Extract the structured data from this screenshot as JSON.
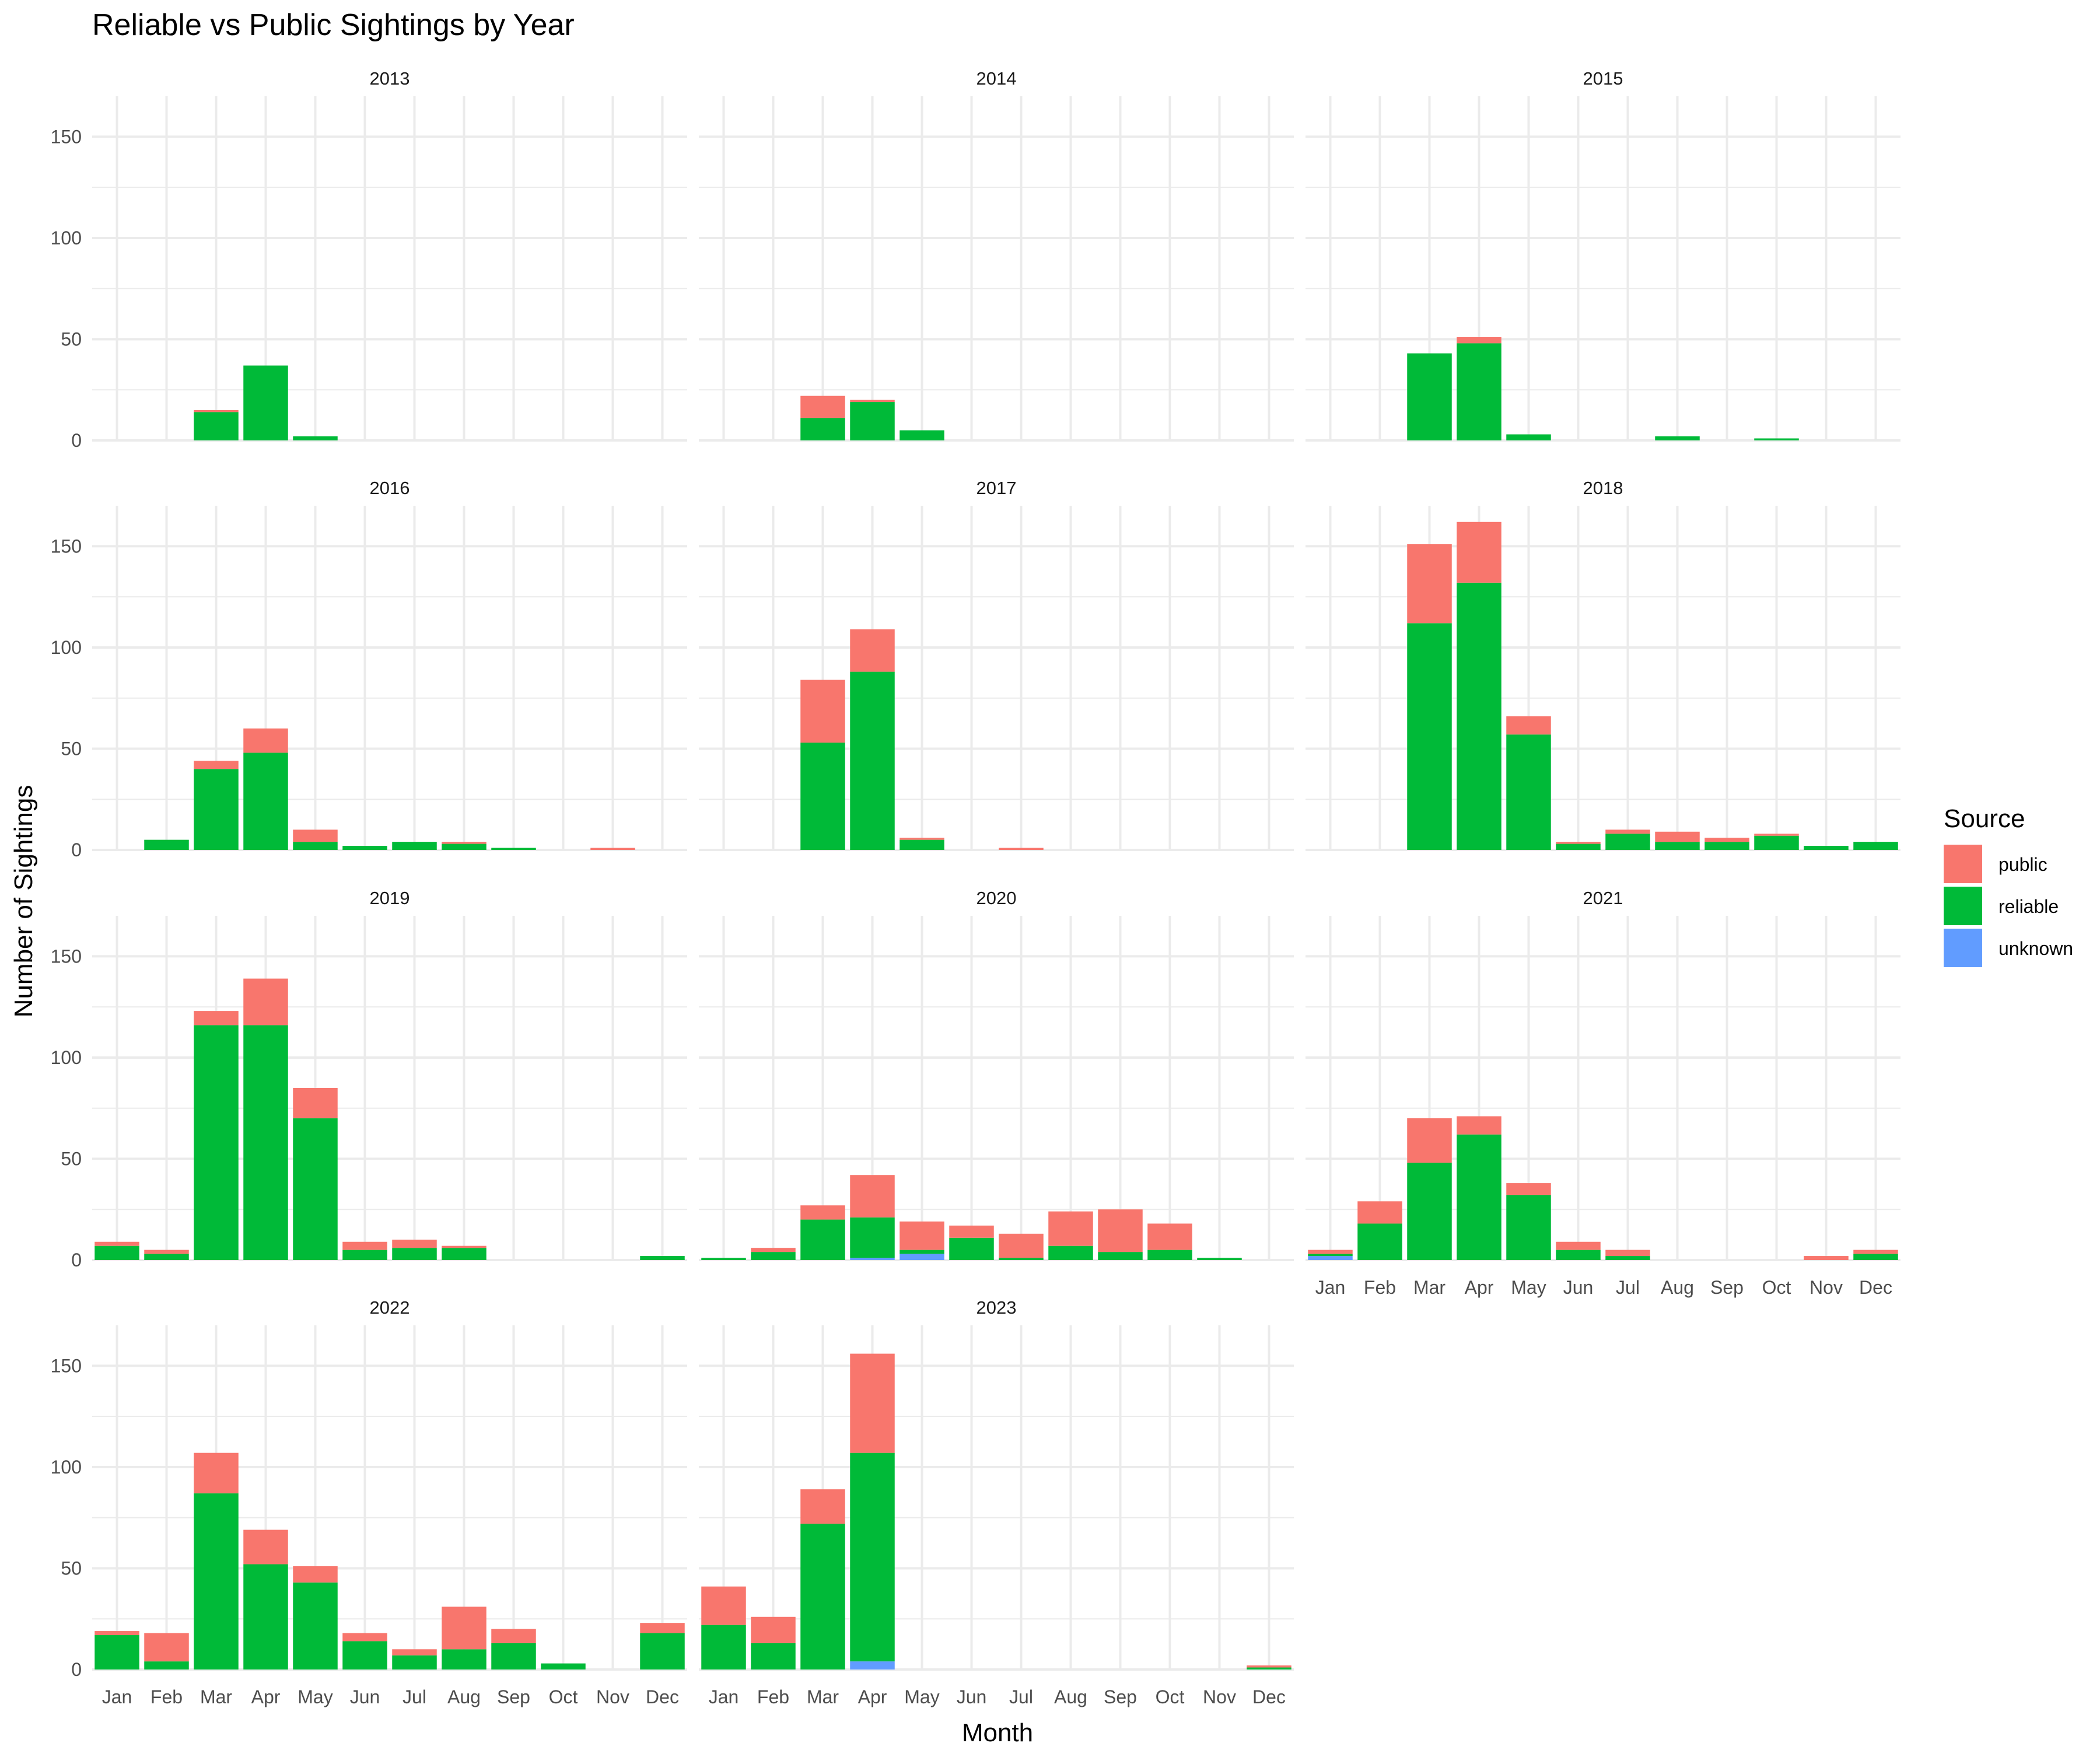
{
  "chart_data": {
    "type": "bar",
    "stacked": true,
    "title": "Reliable vs Public Sightings by Year",
    "xlabel": "Month",
    "ylabel": "Number of Sightings",
    "categories": [
      "Jan",
      "Feb",
      "Mar",
      "Apr",
      "May",
      "Jun",
      "Jul",
      "Aug",
      "Sep",
      "Oct",
      "Nov",
      "Dec"
    ],
    "ylim": [
      0,
      170
    ],
    "yticks": [
      0,
      50,
      100,
      150
    ],
    "grid": true,
    "legend": {
      "title": "Source",
      "placement": "right",
      "items": [
        {
          "name": "public",
          "color": "#F8766D"
        },
        {
          "name": "reliable",
          "color": "#00BA38"
        },
        {
          "name": "unknown",
          "color": "#619CFF"
        }
      ]
    },
    "panels": [
      {
        "year": "2013",
        "reliable": [
          0,
          0,
          14,
          37,
          2,
          0,
          0,
          0,
          0,
          0,
          0,
          0
        ],
        "public": [
          0,
          0,
          1,
          0,
          0,
          0,
          0,
          0,
          0,
          0,
          0,
          0
        ],
        "unknown": [
          0,
          0,
          0,
          0,
          0,
          0,
          0,
          0,
          0,
          0,
          0,
          0
        ]
      },
      {
        "year": "2014",
        "reliable": [
          0,
          0,
          11,
          19,
          5,
          0,
          0,
          0,
          0,
          0,
          0,
          0
        ],
        "public": [
          0,
          0,
          11,
          1,
          0,
          0,
          0,
          0,
          0,
          0,
          0,
          0
        ],
        "unknown": [
          0,
          0,
          0,
          0,
          0,
          0,
          0,
          0,
          0,
          0,
          0,
          0
        ]
      },
      {
        "year": "2015",
        "reliable": [
          0,
          0,
          43,
          48,
          3,
          0,
          0,
          2,
          0,
          1,
          0,
          0
        ],
        "public": [
          0,
          0,
          0,
          3,
          0,
          0,
          0,
          0,
          0,
          0,
          0,
          0
        ],
        "unknown": [
          0,
          0,
          0,
          0,
          0,
          0,
          0,
          0,
          0,
          0,
          0,
          0
        ]
      },
      {
        "year": "2016",
        "reliable": [
          0,
          5,
          40,
          48,
          4,
          2,
          4,
          3,
          1,
          0,
          0,
          0
        ],
        "public": [
          0,
          0,
          4,
          12,
          6,
          0,
          0,
          1,
          0,
          0,
          1,
          0
        ],
        "unknown": [
          0,
          0,
          0,
          0,
          0,
          0,
          0,
          0,
          0,
          0,
          0,
          0
        ]
      },
      {
        "year": "2017",
        "reliable": [
          0,
          0,
          53,
          88,
          5,
          0,
          0,
          0,
          0,
          0,
          0,
          0
        ],
        "public": [
          0,
          0,
          31,
          21,
          1,
          0,
          1,
          0,
          0,
          0,
          0,
          0
        ],
        "unknown": [
          0,
          0,
          0,
          0,
          0,
          0,
          0,
          0,
          0,
          0,
          0,
          0
        ]
      },
      {
        "year": "2018",
        "reliable": [
          0,
          0,
          112,
          132,
          57,
          3,
          8,
          4,
          4,
          7,
          2,
          4
        ],
        "public": [
          0,
          0,
          39,
          30,
          9,
          1,
          2,
          5,
          2,
          1,
          0,
          0
        ],
        "unknown": [
          0,
          0,
          0,
          0,
          0,
          0,
          0,
          0,
          0,
          0,
          0,
          0
        ]
      },
      {
        "year": "2019",
        "reliable": [
          7,
          3,
          116,
          116,
          70,
          5,
          6,
          6,
          0,
          0,
          0,
          2
        ],
        "public": [
          2,
          2,
          7,
          23,
          15,
          4,
          4,
          1,
          0,
          0,
          0,
          0
        ],
        "unknown": [
          0,
          0,
          0,
          0,
          0,
          0,
          0,
          0,
          0,
          0,
          0,
          0
        ]
      },
      {
        "year": "2020",
        "reliable": [
          1,
          4,
          20,
          20,
          2,
          11,
          1,
          7,
          4,
          5,
          1,
          0
        ],
        "public": [
          0,
          2,
          7,
          21,
          14,
          6,
          12,
          17,
          21,
          13,
          0,
          0
        ],
        "unknown": [
          0,
          0,
          0,
          1,
          3,
          0,
          0,
          0,
          0,
          0,
          0,
          0
        ]
      },
      {
        "year": "2021",
        "reliable": [
          1,
          18,
          48,
          62,
          32,
          5,
          2,
          0,
          0,
          0,
          0,
          3
        ],
        "public": [
          2,
          11,
          22,
          9,
          6,
          4,
          3,
          0,
          0,
          0,
          2,
          2
        ],
        "unknown": [
          2,
          0,
          0,
          0,
          0,
          0,
          0,
          0,
          0,
          0,
          0,
          0
        ]
      },
      {
        "year": "2022",
        "reliable": [
          17,
          4,
          87,
          52,
          43,
          14,
          7,
          10,
          13,
          3,
          0,
          18
        ],
        "public": [
          2,
          14,
          20,
          17,
          8,
          4,
          3,
          21,
          7,
          0,
          0,
          5
        ],
        "unknown": [
          0,
          0,
          0,
          0,
          0,
          0,
          0,
          0,
          0,
          0,
          0,
          0
        ]
      },
      {
        "year": "2023",
        "reliable": [
          22,
          13,
          72,
          103,
          0,
          0,
          0,
          0,
          0,
          0,
          0,
          1
        ],
        "public": [
          19,
          13,
          17,
          49,
          0,
          0,
          0,
          0,
          0,
          0,
          0,
          1
        ],
        "unknown": [
          0,
          0,
          0,
          4,
          0,
          0,
          0,
          0,
          0,
          0,
          0,
          0
        ]
      }
    ]
  }
}
